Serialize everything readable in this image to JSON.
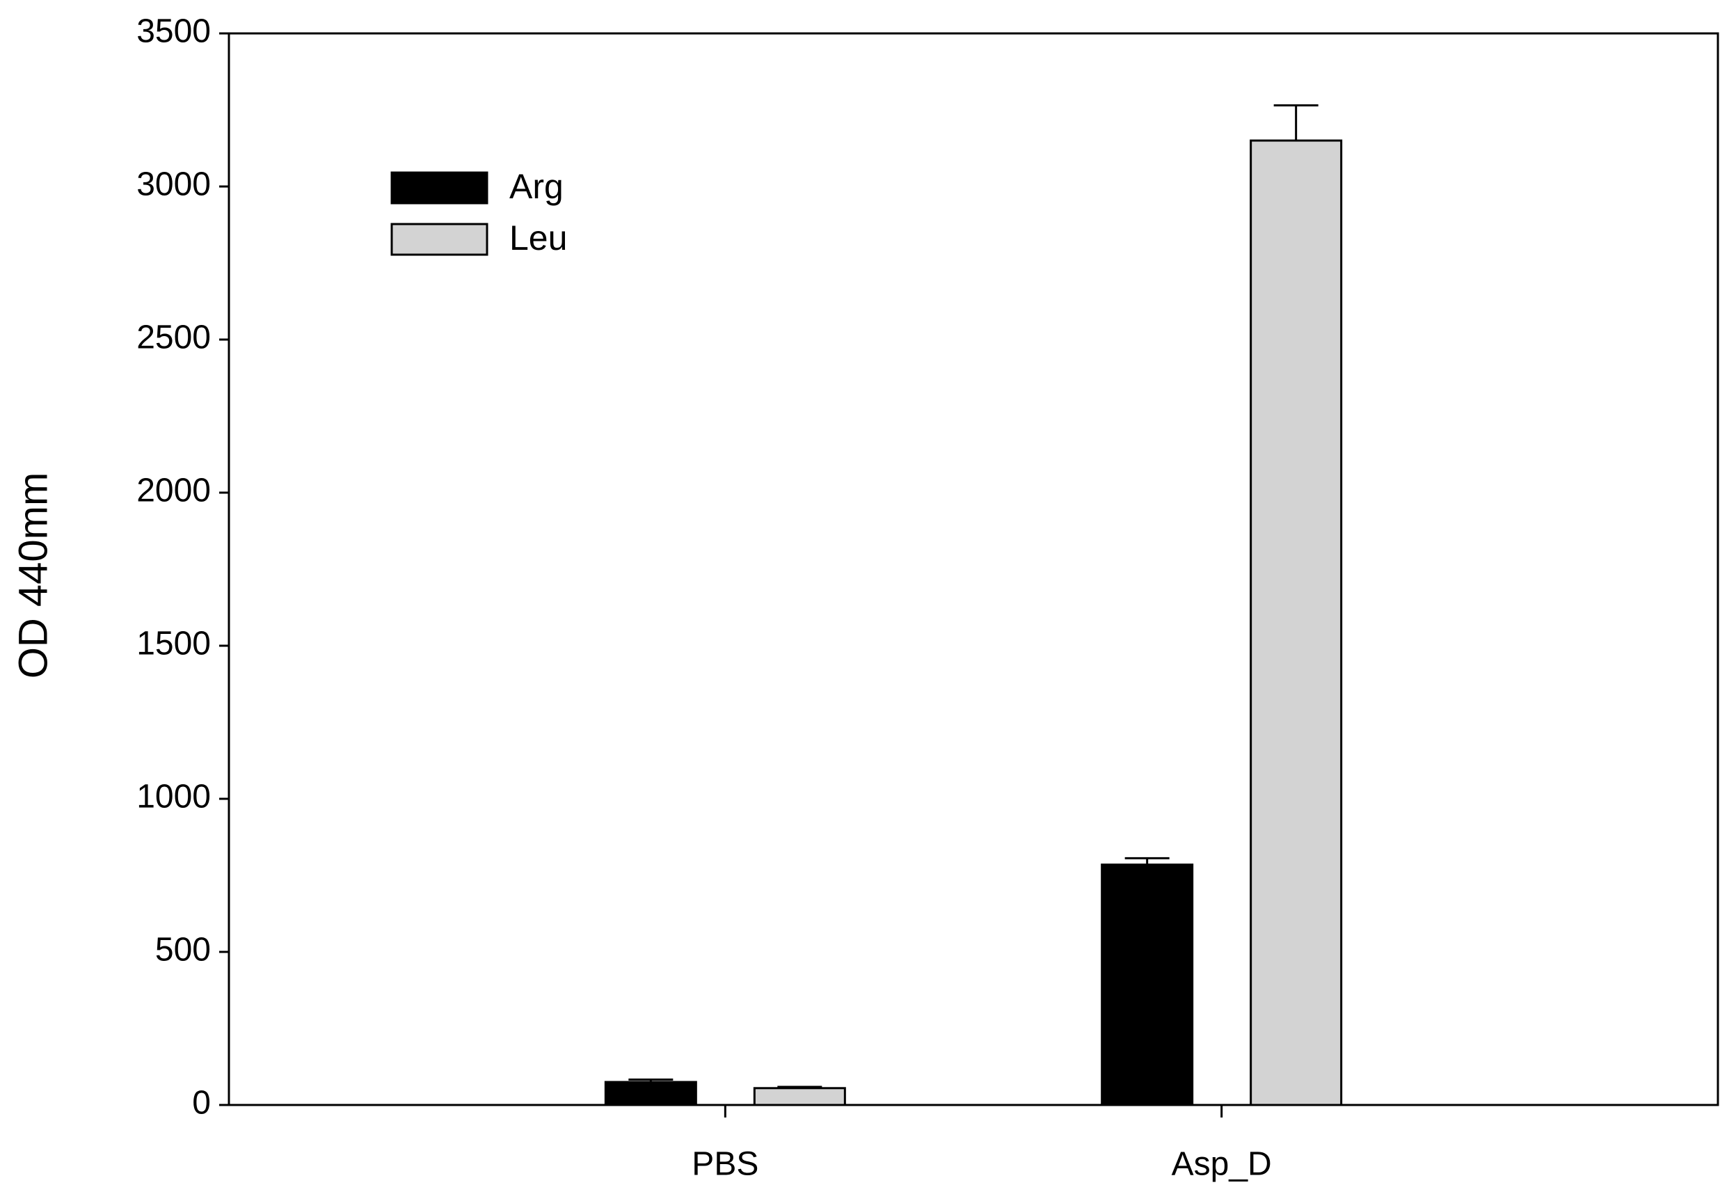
{
  "chart_data": {
    "type": "bar",
    "y_label": "OD 440mm",
    "categories": [
      "PBS",
      "Asp_D"
    ],
    "series": [
      {
        "name": "Arg",
        "color": "#000000",
        "values": [
          75,
          785
        ],
        "errors": [
          8,
          21
        ]
      },
      {
        "name": "Leu",
        "color": "#d3d3d3",
        "values": [
          55,
          3150
        ],
        "errors": [
          4,
          115
        ]
      }
    ],
    "ylim": [
      0,
      3500
    ],
    "yticks": [
      0,
      500,
      1000,
      1500,
      2000,
      2500,
      3000,
      3500
    ],
    "grid": false,
    "legend": "upper-left"
  }
}
